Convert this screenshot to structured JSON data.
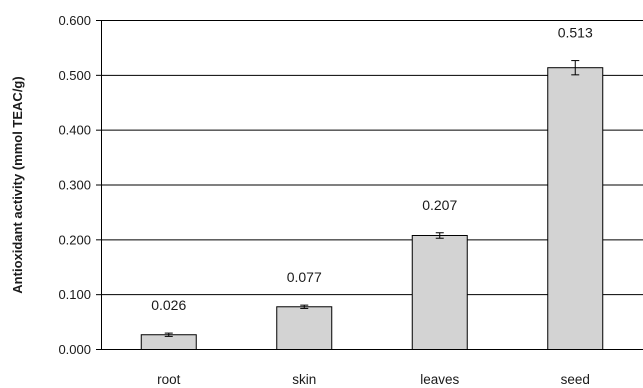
{
  "chart_data": {
    "type": "bar",
    "title": "",
    "xlabel": "",
    "ylabel": "Antioxidant activity (mmol TEAC/g)",
    "categories": [
      "root",
      "skin",
      "leaves",
      "seed"
    ],
    "values": [
      0.026,
      0.077,
      0.207,
      0.513
    ],
    "value_labels": [
      "0.026",
      "0.077",
      "0.207",
      "0.513"
    ],
    "error": [
      0.003,
      0.003,
      0.005,
      0.013
    ],
    "ylim": [
      0,
      0.6
    ],
    "yticks": [
      0,
      0.1,
      0.2,
      0.3,
      0.4,
      0.5,
      0.6
    ],
    "ytick_labels": [
      "0.000",
      "0.100",
      "0.200",
      "0.300",
      "0.400",
      "0.500",
      "0.600"
    ],
    "grid": true,
    "legend": "none",
    "colors": {
      "bar_fill": "#d3d3d3",
      "bar_stroke": "#000000",
      "grid": "#000000"
    }
  }
}
